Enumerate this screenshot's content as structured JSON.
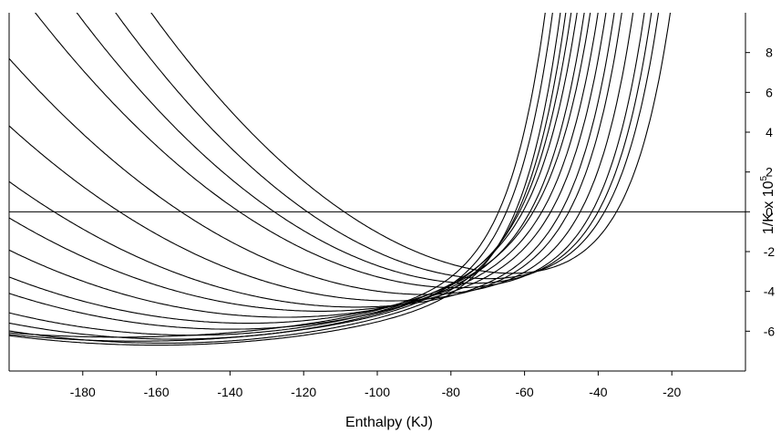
{
  "chart_data": {
    "type": "line",
    "title": "",
    "xlabel": "Enthalpy (KJ)",
    "ylabel_main": "1/K x 10",
    "ylabel_sup": "5",
    "xlim": [
      -200,
      0
    ],
    "ylim": [
      -8,
      10
    ],
    "x_ticks": [
      -180,
      -160,
      -140,
      -120,
      -100,
      -80,
      -60,
      -40,
      -20
    ],
    "y_ticks": [
      -6,
      -4,
      -2,
      0,
      2,
      4,
      6,
      8
    ],
    "grid": false,
    "legend": "none",
    "zero_line": true,
    "curve_model": "y = a*(x - h)^2 + k + c*exp(b*(x - x0))",
    "series": [
      {
        "a": 0.00122,
        "h": -57,
        "k": -3.3,
        "c": 1.0,
        "b": 0.1,
        "x0": -45
      },
      {
        "a": 0.0012,
        "h": -65,
        "k": -3.5,
        "c": 1.0,
        "b": 0.1,
        "x0": -48
      },
      {
        "a": 0.0011,
        "h": -70,
        "k": -3.7,
        "c": 1.0,
        "b": 0.1,
        "x0": -50
      },
      {
        "a": 0.001,
        "h": -75,
        "k": -3.9,
        "c": 1.0,
        "b": 0.1,
        "x0": -52
      },
      {
        "a": 0.0009,
        "h": -85,
        "k": -4.2,
        "c": 1.0,
        "b": 0.1,
        "x0": -55
      },
      {
        "a": 0.0008,
        "h": -95,
        "k": -4.5,
        "c": 1.0,
        "b": 0.1,
        "x0": -58
      },
      {
        "a": 0.0007,
        "h": -105,
        "k": -4.8,
        "c": 1.0,
        "b": 0.1,
        "x0": -60
      },
      {
        "a": 0.00065,
        "h": -115,
        "k": -5.0,
        "c": 1.0,
        "b": 0.1,
        "x0": -62
      },
      {
        "a": 0.0006,
        "h": -125,
        "k": -5.3,
        "c": 1.0,
        "b": 0.1,
        "x0": -64
      },
      {
        "a": 0.00055,
        "h": -135,
        "k": -5.6,
        "c": 1.0,
        "b": 0.1,
        "x0": -66
      },
      {
        "a": 0.0005,
        "h": -140,
        "k": -5.9,
        "c": 1.0,
        "b": 0.1,
        "x0": -68
      },
      {
        "a": 0.00045,
        "h": -150,
        "k": -6.2,
        "c": 1.0,
        "b": 0.1,
        "x0": -70
      },
      {
        "a": 0.0004,
        "h": -155,
        "k": -6.4,
        "c": 1.0,
        "b": 0.1,
        "x0": -72
      },
      {
        "a": 0.00035,
        "h": -158,
        "k": -6.6,
        "c": 1.0,
        "b": 0.1,
        "x0": -74
      },
      {
        "a": 0.0003,
        "h": -160,
        "k": -6.7,
        "c": 1.0,
        "b": 0.1,
        "x0": -76
      },
      {
        "a": 0.00028,
        "h": -165,
        "k": -6.5,
        "c": 1.0,
        "b": 0.1,
        "x0": -78
      },
      {
        "a": 0.00025,
        "h": -170,
        "k": -6.3,
        "c": 1.0,
        "b": 0.1,
        "x0": -80
      }
    ]
  }
}
